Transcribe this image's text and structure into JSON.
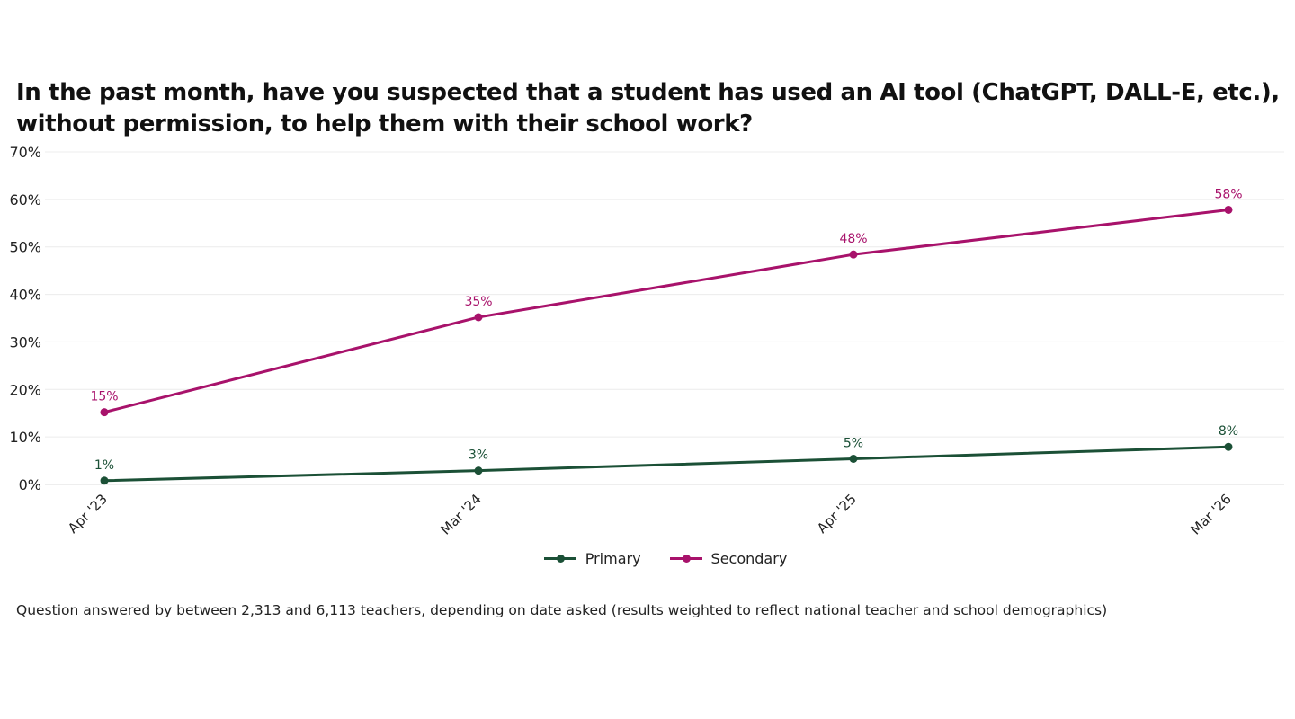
{
  "chart_data": {
    "type": "line",
    "title": "In the past month, have you suspected that a student has used an AI tool (ChatGPT, DALL-E, etc.), without permission, to help them with their school work?",
    "categories": [
      "Apr '23",
      "Mar '24",
      "Apr '25",
      "Mar '26"
    ],
    "x_positions": [
      "2023-04",
      "2024-03",
      "2025-04",
      "2026-03"
    ],
    "series": [
      {
        "name": "Primary",
        "color": "#1b5036",
        "values": [
          1,
          3,
          5,
          8
        ],
        "labels": [
          "1%",
          "3%",
          "5%",
          "8%"
        ],
        "plotted": [
          0.8,
          2.9,
          5.4,
          7.9
        ]
      },
      {
        "name": "Secondary",
        "color": "#a8126b",
        "values": [
          15,
          35,
          48,
          58
        ],
        "labels": [
          "15%",
          "35%",
          "48%",
          "58%"
        ],
        "plotted": [
          15.2,
          35.2,
          48.4,
          57.8
        ]
      }
    ],
    "ylim": [
      0,
      70
    ],
    "yticks": [
      0,
      10,
      20,
      30,
      40,
      50,
      60,
      70
    ],
    "ytick_labels": [
      "0%",
      "10%",
      "20%",
      "30%",
      "40%",
      "50%",
      "60%",
      "70%"
    ],
    "grid": true,
    "legend_position": "bottom-center",
    "xlabel": "",
    "ylabel": ""
  },
  "footnote": "Question answered by between 2,313 and 6,113 teachers, depending on date asked (results weighted to reflect national teacher and school demographics)"
}
